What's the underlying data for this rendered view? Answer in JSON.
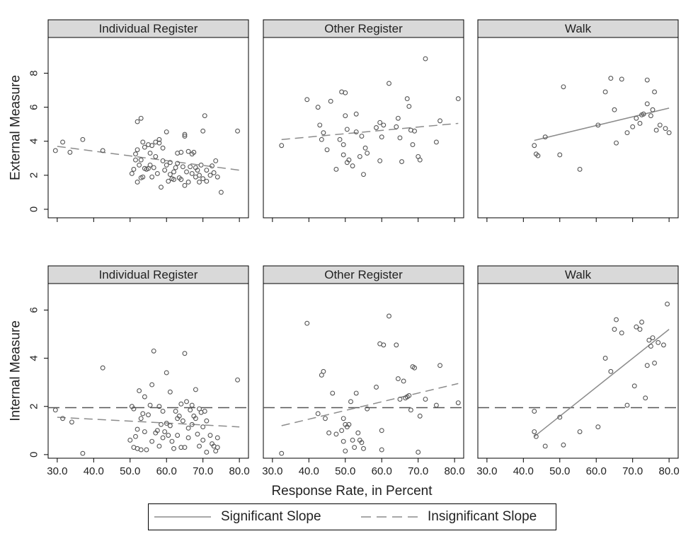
{
  "chart_data": [
    {
      "type": "scatter",
      "panel": "Individual Register",
      "row": "External Measure",
      "slope": "insignificant",
      "fit": {
        "x": [
          30,
          80
        ],
        "y": [
          3.7,
          2.3
        ]
      },
      "reference_line": null,
      "points": [
        [
          29.5,
          3.45
        ],
        [
          31.5,
          3.95
        ],
        [
          33.5,
          3.35
        ],
        [
          37,
          4.1
        ],
        [
          42.5,
          3.45
        ],
        [
          50.5,
          2.1
        ],
        [
          51,
          2.35
        ],
        [
          51.5,
          2.9
        ],
        [
          51.5,
          3.25
        ],
        [
          52,
          3.5
        ],
        [
          52,
          1.6
        ],
        [
          52,
          5.15
        ],
        [
          52.5,
          2.6
        ],
        [
          53,
          2.9
        ],
        [
          53,
          5.35
        ],
        [
          53,
          1.85
        ],
        [
          53.5,
          3.95
        ],
        [
          53.5,
          1.9
        ],
        [
          54,
          2.4
        ],
        [
          54,
          3.65
        ],
        [
          54.5,
          2.35
        ],
        [
          55,
          3.8
        ],
        [
          55,
          2.4
        ],
        [
          55.5,
          3.3
        ],
        [
          55.5,
          2.6
        ],
        [
          56,
          3.75
        ],
        [
          56,
          1.9
        ],
        [
          56.5,
          2.45
        ],
        [
          57,
          3.1
        ],
        [
          57,
          3.95
        ],
        [
          57.5,
          2.1
        ],
        [
          58,
          3.9
        ],
        [
          58,
          4.1
        ],
        [
          58.5,
          1.3
        ],
        [
          59,
          2.85
        ],
        [
          59,
          3.6
        ],
        [
          59.5,
          2.3
        ],
        [
          60,
          2.6
        ],
        [
          60,
          4.55
        ],
        [
          60.5,
          1.65
        ],
        [
          61,
          2.75
        ],
        [
          61,
          2.05
        ],
        [
          61.5,
          1.8
        ],
        [
          62,
          2.2
        ],
        [
          62,
          1.75
        ],
        [
          62.5,
          2.45
        ],
        [
          63,
          2.7
        ],
        [
          63,
          3.3
        ],
        [
          63.5,
          1.85
        ],
        [
          64,
          1.75
        ],
        [
          64,
          3.35
        ],
        [
          64.5,
          2.5
        ],
        [
          65,
          4.3
        ],
        [
          65,
          4.4
        ],
        [
          65,
          1.4
        ],
        [
          65.5,
          2.2
        ],
        [
          66,
          1.6
        ],
        [
          66,
          3.4
        ],
        [
          66.5,
          2.5
        ],
        [
          67,
          2.1
        ],
        [
          67,
          3.25
        ],
        [
          67.5,
          3.35
        ],
        [
          68,
          1.9
        ],
        [
          68,
          2.45
        ],
        [
          68.5,
          2.3
        ],
        [
          69,
          1.6
        ],
        [
          69,
          2.0
        ],
        [
          69.5,
          2.6
        ],
        [
          70,
          1.8
        ],
        [
          70,
          4.6
        ],
        [
          70.5,
          5.5
        ],
        [
          71,
          1.65
        ],
        [
          71,
          2.3
        ],
        [
          72,
          2.0
        ],
        [
          72.5,
          2.55
        ],
        [
          73,
          2.15
        ],
        [
          73.5,
          2.85
        ],
        [
          74,
          1.9
        ],
        [
          75,
          1.0
        ],
        [
          79.5,
          4.6
        ]
      ]
    },
    {
      "type": "scatter",
      "panel": "Other Register",
      "row": "External Measure",
      "slope": "insignificant",
      "fit": {
        "x": [
          32.5,
          81
        ],
        "y": [
          4.1,
          5.05
        ]
      },
      "reference_line": null,
      "points": [
        [
          32.5,
          3.75
        ],
        [
          39.5,
          6.45
        ],
        [
          42.5,
          6.0
        ],
        [
          43,
          4.95
        ],
        [
          43.5,
          4.1
        ],
        [
          44,
          4.5
        ],
        [
          45,
          3.5
        ],
        [
          46,
          6.35
        ],
        [
          47.5,
          2.35
        ],
        [
          48.5,
          4.1
        ],
        [
          49,
          6.9
        ],
        [
          49.5,
          3.8
        ],
        [
          49.5,
          3.2
        ],
        [
          50,
          6.85
        ],
        [
          50,
          5.5
        ],
        [
          50.5,
          4.7
        ],
        [
          50.5,
          2.75
        ],
        [
          51,
          2.9
        ],
        [
          52,
          2.55
        ],
        [
          53,
          5.6
        ],
        [
          53,
          4.55
        ],
        [
          54,
          3.1
        ],
        [
          54.5,
          4.3
        ],
        [
          55,
          2.05
        ],
        [
          55.5,
          3.6
        ],
        [
          56,
          3.3
        ],
        [
          58.5,
          4.8
        ],
        [
          59.5,
          2.85
        ],
        [
          59.5,
          5.1
        ],
        [
          60,
          4.25
        ],
        [
          60.5,
          4.95
        ],
        [
          62,
          7.4
        ],
        [
          64,
          4.85
        ],
        [
          64.5,
          5.35
        ],
        [
          65,
          4.2
        ],
        [
          65.5,
          2.8
        ],
        [
          67,
          6.5
        ],
        [
          67.5,
          6.05
        ],
        [
          68,
          4.65
        ],
        [
          68.5,
          3.8
        ],
        [
          69,
          4.6
        ],
        [
          70,
          3.1
        ],
        [
          70.5,
          2.9
        ],
        [
          72,
          8.85
        ],
        [
          75,
          3.95
        ],
        [
          76,
          5.2
        ],
        [
          81,
          6.5
        ]
      ]
    },
    {
      "type": "scatter",
      "panel": "Walk",
      "row": "External Measure",
      "slope": "significant",
      "fit": {
        "x": [
          43,
          80
        ],
        "y": [
          4.05,
          5.95
        ]
      },
      "reference_line": null,
      "points": [
        [
          43,
          3.75
        ],
        [
          43.5,
          3.25
        ],
        [
          44,
          3.15
        ],
        [
          46,
          4.25
        ],
        [
          50,
          3.2
        ],
        [
          51,
          7.2
        ],
        [
          55.5,
          2.35
        ],
        [
          60.5,
          4.95
        ],
        [
          62.5,
          6.9
        ],
        [
          64,
          7.7
        ],
        [
          65,
          5.85
        ],
        [
          65.5,
          3.9
        ],
        [
          67,
          7.65
        ],
        [
          68.5,
          4.5
        ],
        [
          70,
          4.85
        ],
        [
          71,
          5.35
        ],
        [
          72,
          5.05
        ],
        [
          72.5,
          5.55
        ],
        [
          73,
          5.6
        ],
        [
          74,
          6.2
        ],
        [
          74,
          7.6
        ],
        [
          75,
          5.5
        ],
        [
          75.5,
          5.85
        ],
        [
          76,
          6.9
        ],
        [
          76.5,
          4.65
        ],
        [
          77.5,
          4.95
        ],
        [
          79,
          4.75
        ],
        [
          80,
          4.5
        ]
      ]
    },
    {
      "type": "scatter",
      "panel": "Individual Register",
      "row": "Internal Measure",
      "slope": "insignificant",
      "fit": {
        "x": [
          30,
          80
        ],
        "y": [
          1.55,
          1.15
        ]
      },
      "reference_line": 1.95,
      "points": [
        [
          29.5,
          1.85
        ],
        [
          31.5,
          1.5
        ],
        [
          34,
          1.35
        ],
        [
          37,
          0.05
        ],
        [
          42.5,
          3.6
        ],
        [
          50,
          0.6
        ],
        [
          50.5,
          2.0
        ],
        [
          51,
          0.3
        ],
        [
          51,
          1.9
        ],
        [
          51.5,
          0.75
        ],
        [
          52,
          0.25
        ],
        [
          52,
          1.05
        ],
        [
          52.5,
          2.65
        ],
        [
          53,
          0.2
        ],
        [
          53,
          1.5
        ],
        [
          53.5,
          1.7
        ],
        [
          54,
          0.95
        ],
        [
          54,
          2.4
        ],
        [
          54.5,
          0.2
        ],
        [
          55,
          1.65
        ],
        [
          55.5,
          2.05
        ],
        [
          56,
          2.9
        ],
        [
          56,
          0.55
        ],
        [
          56.5,
          4.3
        ],
        [
          57,
          0.9
        ],
        [
          57.5,
          1.0
        ],
        [
          58,
          2.0
        ],
        [
          58,
          0.35
        ],
        [
          58.5,
          1.25
        ],
        [
          59,
          0.7
        ],
        [
          59,
          1.8
        ],
        [
          59.5,
          0.95
        ],
        [
          60,
          3.4
        ],
        [
          60,
          1.3
        ],
        [
          60.5,
          0.8
        ],
        [
          61,
          2.6
        ],
        [
          61,
          1.2
        ],
        [
          61.5,
          0.55
        ],
        [
          62,
          0.25
        ],
        [
          62.5,
          1.8
        ],
        [
          63,
          1.5
        ],
        [
          63,
          0.8
        ],
        [
          63.5,
          1.6
        ],
        [
          64,
          2.1
        ],
        [
          64,
          0.3
        ],
        [
          64.5,
          1.4
        ],
        [
          65,
          4.2
        ],
        [
          65,
          0.3
        ],
        [
          65.5,
          2.2
        ],
        [
          66,
          1.1
        ],
        [
          66,
          0.7
        ],
        [
          66.5,
          1.85
        ],
        [
          67,
          2.05
        ],
        [
          67,
          1.25
        ],
        [
          67.5,
          1.6
        ],
        [
          68,
          2.7
        ],
        [
          68,
          1.5
        ],
        [
          68.5,
          0.85
        ],
        [
          69,
          1.9
        ],
        [
          69,
          0.35
        ],
        [
          69.5,
          1.75
        ],
        [
          70,
          0.6
        ],
        [
          70,
          1.15
        ],
        [
          70.5,
          1.8
        ],
        [
          71,
          0.1
        ],
        [
          71,
          1.4
        ],
        [
          72,
          0.8
        ],
        [
          72.5,
          0.45
        ],
        [
          73,
          0.35
        ],
        [
          73.5,
          0.15
        ],
        [
          74,
          0.7
        ],
        [
          74,
          0.3
        ],
        [
          79.5,
          3.1
        ]
      ]
    },
    {
      "type": "scatter",
      "panel": "Other Register",
      "row": "Internal Measure",
      "slope": "insignificant",
      "fit": {
        "x": [
          32.5,
          81
        ],
        "y": [
          1.2,
          2.95
        ]
      },
      "reference_line": 1.95,
      "points": [
        [
          32.5,
          0.05
        ],
        [
          39.5,
          5.45
        ],
        [
          42.5,
          1.7
        ],
        [
          43.5,
          3.3
        ],
        [
          44,
          3.45
        ],
        [
          44.5,
          1.5
        ],
        [
          45.5,
          0.9
        ],
        [
          46.5,
          2.55
        ],
        [
          47.5,
          0.85
        ],
        [
          49,
          1.0
        ],
        [
          49.5,
          1.5
        ],
        [
          49.5,
          0.55
        ],
        [
          50,
          1.25
        ],
        [
          50,
          0.15
        ],
        [
          50.5,
          1.15
        ],
        [
          51,
          1.25
        ],
        [
          51.5,
          2.2
        ],
        [
          52,
          0.6
        ],
        [
          52.5,
          0.3
        ],
        [
          53,
          2.55
        ],
        [
          53.5,
          0.9
        ],
        [
          54,
          0.6
        ],
        [
          54.5,
          0.5
        ],
        [
          55,
          0.25
        ],
        [
          56,
          1.9
        ],
        [
          58.5,
          2.8
        ],
        [
          59.5,
          4.6
        ],
        [
          60,
          0.2
        ],
        [
          60,
          1.0
        ],
        [
          60.5,
          4.55
        ],
        [
          62,
          5.75
        ],
        [
          64,
          4.55
        ],
        [
          64.5,
          3.15
        ],
        [
          65,
          2.3
        ],
        [
          66,
          3.05
        ],
        [
          66.5,
          2.35
        ],
        [
          67,
          2.4
        ],
        [
          67.5,
          2.45
        ],
        [
          68,
          1.85
        ],
        [
          68.5,
          3.65
        ],
        [
          69,
          3.6
        ],
        [
          70,
          0.1
        ],
        [
          70.5,
          1.6
        ],
        [
          72,
          2.3
        ],
        [
          75,
          2.05
        ],
        [
          76,
          3.7
        ],
        [
          81,
          2.15
        ]
      ]
    },
    {
      "type": "scatter",
      "panel": "Walk",
      "row": "Internal Measure",
      "slope": "significant",
      "fit": {
        "x": [
          43,
          80
        ],
        "y": [
          0.75,
          5.2
        ]
      },
      "reference_line": 1.95,
      "points": [
        [
          43,
          1.8
        ],
        [
          43,
          0.95
        ],
        [
          43.5,
          0.75
        ],
        [
          46,
          0.35
        ],
        [
          50,
          1.55
        ],
        [
          51,
          0.4
        ],
        [
          55.5,
          0.95
        ],
        [
          60.5,
          1.15
        ],
        [
          62.5,
          4.0
        ],
        [
          64,
          3.45
        ],
        [
          65,
          5.2
        ],
        [
          65.5,
          5.6
        ],
        [
          67,
          5.05
        ],
        [
          68.5,
          2.05
        ],
        [
          70.5,
          2.85
        ],
        [
          71,
          5.3
        ],
        [
          72,
          5.2
        ],
        [
          72.5,
          5.5
        ],
        [
          73.5,
          2.35
        ],
        [
          74,
          3.7
        ],
        [
          74.5,
          4.75
        ],
        [
          75,
          4.5
        ],
        [
          75.5,
          4.85
        ],
        [
          76,
          3.8
        ],
        [
          77,
          4.65
        ],
        [
          78.5,
          4.55
        ],
        [
          79.5,
          6.25
        ]
      ]
    }
  ],
  "rows": [
    {
      "ylabel": "External Measure",
      "yticks": [
        "0",
        "2",
        "4",
        "6",
        "8"
      ],
      "ylim": [
        -0.5,
        10.1
      ]
    },
    {
      "ylabel": "Internal Measure",
      "yticks": [
        "0",
        "2",
        "4",
        "6"
      ],
      "ylim": [
        -0.15,
        7.1
      ]
    }
  ],
  "xlim": [
    27.5,
    82.5
  ],
  "xticks": [
    "30.0",
    "40.0",
    "50.0",
    "60.0",
    "70.0",
    "80.0"
  ],
  "xlabel": "Response Rate, in Percent",
  "panel_titles": [
    "Individual Register",
    "Other Register",
    "Walk"
  ],
  "legend": {
    "significant": "Significant Slope",
    "insignificant": "Insignificant Slope"
  },
  "colors": {
    "marker": "#555555",
    "fit_line": "#8c8c8c",
    "reference_line": "#555555",
    "strip": "#d9d9d9"
  }
}
